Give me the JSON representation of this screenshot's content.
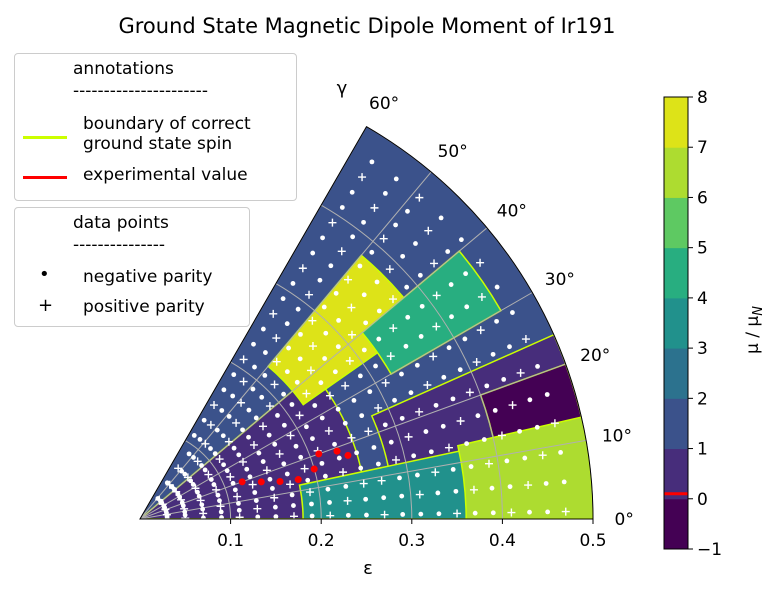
{
  "chart_data": {
    "type": "heatmap",
    "title": "Ground State Magnetic Dipole Moment of Ir191",
    "xlabel": "ε",
    "gamma_label": "γ",
    "colorbar_label": "μ / μ_N",
    "x_ticks": [
      "0.1",
      "0.2",
      "0.3",
      "0.4",
      "0.5"
    ],
    "x_tick_values": [
      0.1,
      0.2,
      0.3,
      0.4,
      0.5
    ],
    "gamma_ticks": [
      "0°",
      "10°",
      "20°",
      "30°",
      "40°",
      "50°",
      "60°"
    ],
    "gamma_tick_values": [
      0,
      10,
      20,
      30,
      40,
      50,
      60
    ],
    "epsilon_range": [
      0,
      0.5
    ],
    "gamma_range": [
      0,
      60
    ],
    "colorbar_ticks": [
      "8",
      "7",
      "6",
      "5",
      "4",
      "3",
      "2",
      "1",
      "0",
      "−1"
    ],
    "colorbar_tick_values": [
      8,
      7,
      6,
      5,
      4,
      3,
      2,
      1,
      0,
      -1
    ],
    "colorbar_range": [
      -1,
      8
    ],
    "colorbar_colors": [
      "#440154",
      "#472d7b",
      "#3b528b",
      "#2c728e",
      "#21918c",
      "#28ae80",
      "#5ec962",
      "#addc30",
      "#dde318"
    ],
    "experimental_value": 0.1,
    "experimental_color": "#ff0000",
    "boundary_color": "#ccff00",
    "regions": [
      {
        "eps": [
          0.0,
          0.5
        ],
        "gam": [
          0,
          60
        ],
        "value": 1.5
      },
      {
        "eps": [
          0.0,
          0.25
        ],
        "gam": [
          0,
          40
        ],
        "value": 0.5
      },
      {
        "eps": [
          0.28,
          0.5
        ],
        "gam": [
          0,
          24
        ],
        "value": 0.5
      },
      {
        "eps": [
          0.4,
          0.5
        ],
        "gam": [
          0,
          20
        ],
        "value": -0.5
      },
      {
        "eps": [
          0.18,
          0.38
        ],
        "gam": [
          0,
          12
        ],
        "value": 3.5
      },
      {
        "eps": [
          0.36,
          0.5
        ],
        "gam": [
          0,
          13
        ],
        "value": 6.5
      },
      {
        "eps": [
          0.22,
          0.38
        ],
        "gam": [
          35,
          50
        ],
        "value": 7.5
      },
      {
        "eps": [
          0.32,
          0.46
        ],
        "gam": [
          30,
          40
        ],
        "value": 4.5
      }
    ],
    "experimental_points": [
      {
        "eps": 0.12,
        "gamma": 20
      },
      {
        "eps": 0.14,
        "gamma": 17
      },
      {
        "eps": 0.16,
        "gamma": 15
      },
      {
        "eps": 0.18,
        "gamma": 14
      },
      {
        "eps": 0.2,
        "gamma": 16
      },
      {
        "eps": 0.21,
        "gamma": 20
      },
      {
        "eps": 0.23,
        "gamma": 19
      },
      {
        "eps": 0.24,
        "gamma": 17
      }
    ],
    "legend_annotations": {
      "title": "annotations",
      "rule": "----------------------",
      "entries": [
        {
          "label": "boundary of correct\nground state spin",
          "color": "#ccff00"
        },
        {
          "label": "experimental value",
          "color": "#ff0000"
        }
      ]
    },
    "legend_points": {
      "title": "data points",
      "rule": "---------------",
      "entries": [
        {
          "symbol": "•",
          "label": "negative parity"
        },
        {
          "symbol": "+",
          "label": "positive parity"
        }
      ]
    }
  }
}
